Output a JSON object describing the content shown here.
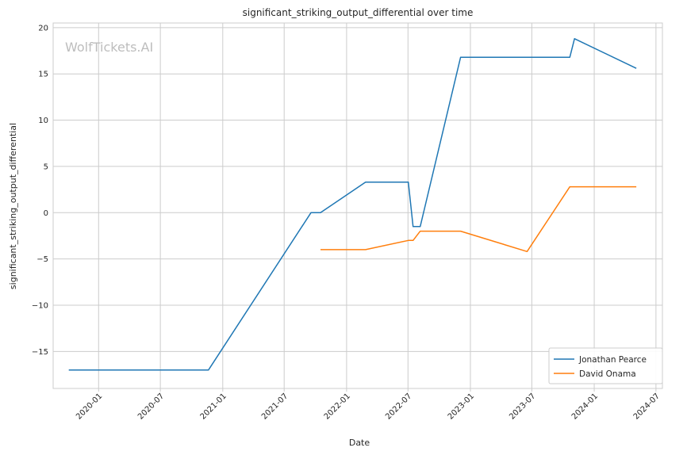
{
  "chart_data": {
    "type": "line",
    "title": "significant_striking_output_differential over time",
    "xlabel": "Date",
    "ylabel": "significant_striking_output_differential",
    "watermark": "WolfTickets.AI",
    "x_tick_labels": [
      "2020-01",
      "2020-07",
      "2021-01",
      "2021-07",
      "2022-01",
      "2022-07",
      "2023-01",
      "2023-07",
      "2024-01",
      "2024-07"
    ],
    "x_tick_dates": [
      "2020-01-01",
      "2020-07-01",
      "2021-01-01",
      "2021-07-01",
      "2022-01-01",
      "2022-07-01",
      "2023-01-01",
      "2023-07-01",
      "2024-01-01",
      "2024-07-01"
    ],
    "y_ticks": [
      20,
      15,
      10,
      5,
      0,
      -5,
      -10,
      -15
    ],
    "y_tick_labels": [
      "20",
      "15",
      "10",
      "5",
      "0",
      "−5",
      "−10",
      "−15"
    ],
    "xlim": [
      "2019-08-20",
      "2024-07-20"
    ],
    "ylim": [
      -19,
      20.5
    ],
    "grid": true,
    "legend_position": "bottom-right",
    "series": [
      {
        "name": "Jonathan Pearce",
        "color": "#1f77b4",
        "points": [
          [
            "2019-10-05",
            -17.0
          ],
          [
            "2020-11-20",
            -17.0
          ],
          [
            "2021-09-18",
            0.0
          ],
          [
            "2021-10-16",
            0.0
          ],
          [
            "2022-02-26",
            3.3
          ],
          [
            "2022-07-02",
            3.3
          ],
          [
            "2022-07-16",
            -1.5
          ],
          [
            "2022-08-06",
            -1.5
          ],
          [
            "2022-12-03",
            16.8
          ],
          [
            "2023-10-21",
            16.8
          ],
          [
            "2023-11-04",
            18.8
          ],
          [
            "2024-05-04",
            15.6
          ]
        ]
      },
      {
        "name": "David Onama",
        "color": "#ff7f0e",
        "points": [
          [
            "2021-10-16",
            -4.0
          ],
          [
            "2022-02-26",
            -4.0
          ],
          [
            "2022-07-02",
            -3.0
          ],
          [
            "2022-07-16",
            -3.0
          ],
          [
            "2022-08-06",
            -2.0
          ],
          [
            "2022-12-03",
            -2.0
          ],
          [
            "2023-06-17",
            -4.2
          ],
          [
            "2023-10-21",
            2.8
          ],
          [
            "2024-05-04",
            2.8
          ]
        ]
      }
    ]
  }
}
